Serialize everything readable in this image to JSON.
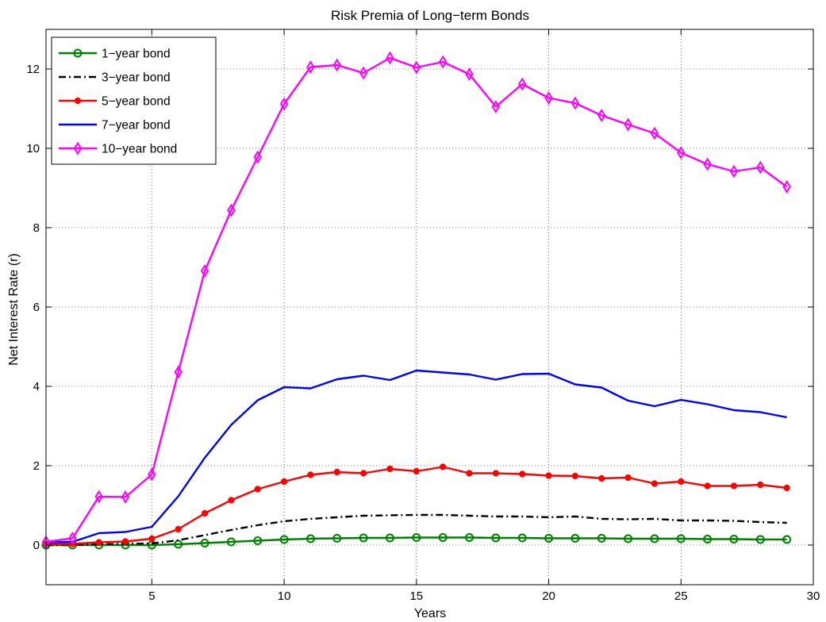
{
  "chart_data": {
    "type": "line",
    "title": "Risk Premia of Long−term Bonds",
    "xlabel": "Years",
    "ylabel": "Net Interest Rate (r)",
    "xlim": [
      1,
      30
    ],
    "ylim": [
      -1,
      13
    ],
    "xticks": [
      5,
      10,
      15,
      20,
      25,
      30
    ],
    "yticks": [
      0,
      2,
      4,
      6,
      8,
      10,
      12
    ],
    "grid": true,
    "legend_position": "top-left",
    "x": [
      1,
      2,
      3,
      4,
      5,
      6,
      7,
      8,
      9,
      10,
      11,
      12,
      13,
      14,
      15,
      16,
      17,
      18,
      19,
      20,
      21,
      22,
      23,
      24,
      25,
      26,
      27,
      28,
      29
    ],
    "series": [
      {
        "name": "1−year bond",
        "color": "#008000",
        "line_style": "solid",
        "marker": "circle",
        "values": [
          0.0,
          0.0,
          0.0,
          0.0,
          0.0,
          0.02,
          0.05,
          0.08,
          0.11,
          0.14,
          0.16,
          0.17,
          0.18,
          0.18,
          0.19,
          0.19,
          0.19,
          0.18,
          0.18,
          0.17,
          0.17,
          0.17,
          0.16,
          0.16,
          0.16,
          0.15,
          0.15,
          0.14,
          0.14
        ]
      },
      {
        "name": "3−year bond",
        "color": "#000000",
        "line_style": "dash-dot",
        "marker": "none",
        "values": [
          0.0,
          0.0,
          0.02,
          0.03,
          0.04,
          0.12,
          0.25,
          0.38,
          0.5,
          0.6,
          0.66,
          0.7,
          0.74,
          0.75,
          0.76,
          0.76,
          0.74,
          0.72,
          0.72,
          0.7,
          0.72,
          0.66,
          0.65,
          0.66,
          0.62,
          0.62,
          0.61,
          0.58,
          0.56
        ]
      },
      {
        "name": "5−year bond",
        "color": "#ff0000",
        "line_style": "solid",
        "marker": "dot",
        "values": [
          0.02,
          0.03,
          0.07,
          0.09,
          0.16,
          0.4,
          0.8,
          1.13,
          1.41,
          1.6,
          1.77,
          1.84,
          1.81,
          1.92,
          1.86,
          1.97,
          1.81,
          1.81,
          1.79,
          1.75,
          1.74,
          1.68,
          1.7,
          1.55,
          1.6,
          1.49,
          1.49,
          1.52,
          1.44
        ]
      },
      {
        "name": "7−year bond",
        "color": "#0000ff",
        "line_style": "solid",
        "marker": "none",
        "values": [
          0.07,
          0.08,
          0.3,
          0.33,
          0.46,
          1.23,
          2.2,
          3.03,
          3.65,
          3.98,
          3.95,
          4.18,
          4.27,
          4.16,
          4.4,
          4.35,
          4.3,
          4.17,
          4.31,
          4.32,
          4.05,
          3.97,
          3.64,
          3.5,
          3.66,
          3.55,
          3.4,
          3.35,
          3.22
        ]
      },
      {
        "name": "10−year bond",
        "color": "#ff00ff",
        "line_style": "solid",
        "marker": "diamond",
        "values": [
          0.08,
          0.17,
          1.22,
          1.21,
          1.78,
          4.36,
          6.91,
          8.44,
          9.78,
          11.12,
          12.05,
          12.1,
          11.9,
          12.28,
          12.04,
          12.18,
          11.87,
          11.05,
          11.62,
          11.27,
          11.14,
          10.83,
          10.6,
          10.38,
          9.89,
          9.6,
          9.42,
          9.52,
          9.03
        ]
      }
    ]
  }
}
